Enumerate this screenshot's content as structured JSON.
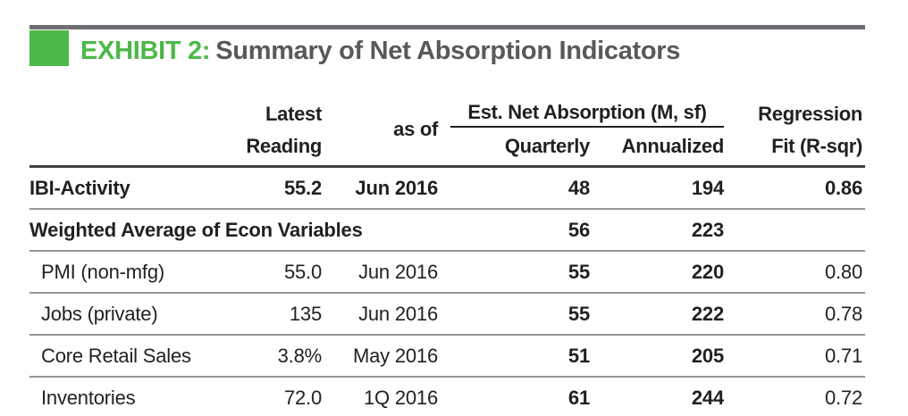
{
  "header": {
    "exhibit_label": "EXHIBIT 2:",
    "title": "Summary of Net Absorption Indicators"
  },
  "table": {
    "headers": {
      "latest_line1": "Latest",
      "latest_line2": "Reading",
      "as_of": "as of",
      "absorption_group": "Est. Net Absorption (M, sf)",
      "quarterly": "Quarterly",
      "annualized": "Annualized",
      "regression_line1": "Regression",
      "regression_line2": "Fit (R-sqr)"
    },
    "rows": [
      {
        "indicator": "IBI-Activity",
        "latest_reading": "55.2",
        "as_of": "Jun 2016",
        "quarterly": "48",
        "annualized": "194",
        "r_sqr": "0.86"
      },
      {
        "indicator": "Weighted Average of Econ Variables",
        "latest_reading": "",
        "as_of": "",
        "quarterly": "56",
        "annualized": "223",
        "r_sqr": ""
      },
      {
        "indicator": "PMI (non-mfg)",
        "latest_reading": "55.0",
        "as_of": "Jun 2016",
        "quarterly": "55",
        "annualized": "220",
        "r_sqr": "0.80"
      },
      {
        "indicator": "Jobs (private)",
        "latest_reading": "135",
        "as_of": "Jun 2016",
        "quarterly": "55",
        "annualized": "222",
        "r_sqr": "0.78"
      },
      {
        "indicator": "Core Retail Sales",
        "latest_reading": "3.8%",
        "as_of": "May 2016",
        "quarterly": "51",
        "annualized": "205",
        "r_sqr": "0.71"
      },
      {
        "indicator": "Inventories",
        "latest_reading": "72.0",
        "as_of": "1Q 2016",
        "quarterly": "61",
        "annualized": "244",
        "r_sqr": "0.72"
      }
    ]
  },
  "colors": {
    "accent_green": "#4DB848",
    "title_gray": "#58595B",
    "top_rule_gray": "#6D6E71",
    "text_dark": "#231F20",
    "row_rule_gray": "#949699"
  }
}
